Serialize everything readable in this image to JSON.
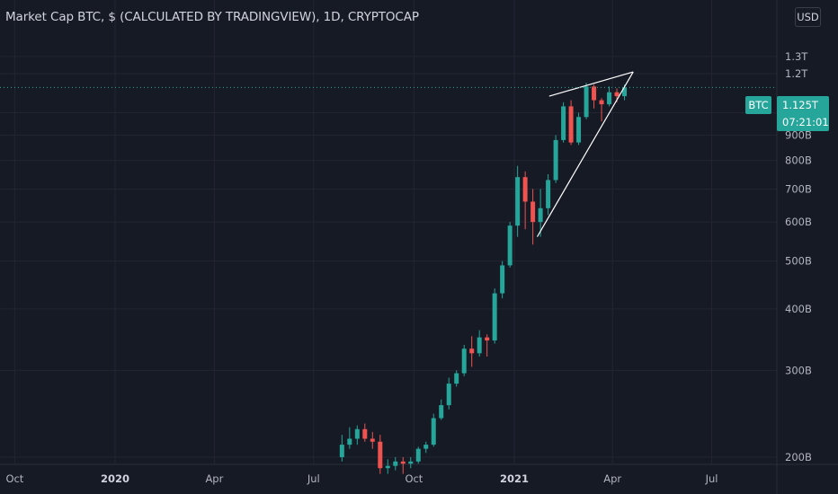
{
  "header": {
    "title": "Market Cap BTC, $ (CALCULATED BY TRADINGVIEW), 1D, CRYPTOCAP",
    "currency_button": "USD"
  },
  "price_tag": {
    "symbol": "BTC",
    "price": "1.125T",
    "countdown": "07:21:01"
  },
  "chart_data": {
    "type": "candlestick",
    "title": "Market Cap BTC, $ (CALCULATED BY TRADINGVIEW), 1D, CRYPTOCAP",
    "currency": "USD",
    "y_unit": "B USD",
    "y_ticks": [
      {
        "value": 200,
        "label": "200B"
      },
      {
        "value": 300,
        "label": "300B"
      },
      {
        "value": 400,
        "label": "400B"
      },
      {
        "value": 500,
        "label": "500B"
      },
      {
        "value": 600,
        "label": "600B"
      },
      {
        "value": 700,
        "label": "700B"
      },
      {
        "value": 800,
        "label": "800B"
      },
      {
        "value": 900,
        "label": "900B"
      },
      {
        "value": 1000,
        "label": "1T"
      },
      {
        "value": 1200,
        "label": "1.2T"
      },
      {
        "value": 1300,
        "label": "1.3T"
      }
    ],
    "x_ticks": [
      {
        "date": "2019-10-01",
        "label": "Oct",
        "bold": false
      },
      {
        "date": "2020-01-01",
        "label": "2020",
        "bold": true
      },
      {
        "date": "2020-04-01",
        "label": "Apr",
        "bold": false
      },
      {
        "date": "2020-07-01",
        "label": "Jul",
        "bold": false
      },
      {
        "date": "2020-10-01",
        "label": "Oct",
        "bold": false
      },
      {
        "date": "2021-01-01",
        "label": "2021",
        "bold": true
      },
      {
        "date": "2021-04-01",
        "label": "Apr",
        "bold": false
      },
      {
        "date": "2021-07-01",
        "label": "Jul",
        "bold": false
      }
    ],
    "last_value": 1125,
    "colors": {
      "up": "#26a69a",
      "down": "#ef5350",
      "background": "#161a25",
      "grid": "#232632",
      "trendline": "#ffffff"
    },
    "ohlc_weekly": [
      {
        "date": "2020-07-27",
        "o": 200,
        "h": 222,
        "l": 196,
        "c": 212
      },
      {
        "date": "2020-08-03",
        "o": 212,
        "h": 230,
        "l": 208,
        "c": 218
      },
      {
        "date": "2020-08-10",
        "o": 218,
        "h": 232,
        "l": 212,
        "c": 228
      },
      {
        "date": "2020-08-17",
        "o": 228,
        "h": 234,
        "l": 215,
        "c": 218
      },
      {
        "date": "2020-08-24",
        "o": 218,
        "h": 225,
        "l": 208,
        "c": 215
      },
      {
        "date": "2020-08-31",
        "o": 215,
        "h": 222,
        "l": 185,
        "c": 190
      },
      {
        "date": "2020-09-07",
        "o": 190,
        "h": 198,
        "l": 185,
        "c": 192
      },
      {
        "date": "2020-09-14",
        "o": 192,
        "h": 200,
        "l": 188,
        "c": 196
      },
      {
        "date": "2020-09-21",
        "o": 196,
        "h": 200,
        "l": 185,
        "c": 194
      },
      {
        "date": "2020-09-28",
        "o": 194,
        "h": 200,
        "l": 190,
        "c": 196
      },
      {
        "date": "2020-10-05",
        "o": 196,
        "h": 210,
        "l": 194,
        "c": 208
      },
      {
        "date": "2020-10-12",
        "o": 208,
        "h": 215,
        "l": 204,
        "c": 212
      },
      {
        "date": "2020-10-19",
        "o": 212,
        "h": 245,
        "l": 210,
        "c": 240
      },
      {
        "date": "2020-10-26",
        "o": 240,
        "h": 262,
        "l": 238,
        "c": 255
      },
      {
        "date": "2020-11-02",
        "o": 255,
        "h": 290,
        "l": 250,
        "c": 282
      },
      {
        "date": "2020-11-09",
        "o": 282,
        "h": 300,
        "l": 278,
        "c": 296
      },
      {
        "date": "2020-11-16",
        "o": 296,
        "h": 338,
        "l": 292,
        "c": 332
      },
      {
        "date": "2020-11-23",
        "o": 332,
        "h": 352,
        "l": 305,
        "c": 325
      },
      {
        "date": "2020-11-30",
        "o": 325,
        "h": 362,
        "l": 320,
        "c": 350
      },
      {
        "date": "2020-12-07",
        "o": 350,
        "h": 355,
        "l": 320,
        "c": 345
      },
      {
        "date": "2020-12-14",
        "o": 345,
        "h": 440,
        "l": 340,
        "c": 430
      },
      {
        "date": "2020-12-21",
        "o": 430,
        "h": 500,
        "l": 420,
        "c": 490
      },
      {
        "date": "2020-12-28",
        "o": 490,
        "h": 600,
        "l": 485,
        "c": 590
      },
      {
        "date": "2021-01-04",
        "o": 590,
        "h": 780,
        "l": 560,
        "c": 740
      },
      {
        "date": "2021-01-11",
        "o": 740,
        "h": 760,
        "l": 580,
        "c": 660
      },
      {
        "date": "2021-01-18",
        "o": 660,
        "h": 700,
        "l": 540,
        "c": 600
      },
      {
        "date": "2021-01-25",
        "o": 600,
        "h": 700,
        "l": 560,
        "c": 640
      },
      {
        "date": "2021-02-01",
        "o": 640,
        "h": 750,
        "l": 620,
        "c": 730
      },
      {
        "date": "2021-02-08",
        "o": 730,
        "h": 900,
        "l": 720,
        "c": 880
      },
      {
        "date": "2021-02-15",
        "o": 880,
        "h": 1050,
        "l": 870,
        "c": 1030
      },
      {
        "date": "2021-02-22",
        "o": 1030,
        "h": 1060,
        "l": 860,
        "c": 870
      },
      {
        "date": "2021-03-01",
        "o": 870,
        "h": 1000,
        "l": 860,
        "c": 980
      },
      {
        "date": "2021-03-08",
        "o": 980,
        "h": 1150,
        "l": 970,
        "c": 1130
      },
      {
        "date": "2021-03-15",
        "o": 1130,
        "h": 1140,
        "l": 1020,
        "c": 1060
      },
      {
        "date": "2021-03-22",
        "o": 1060,
        "h": 1070,
        "l": 960,
        "c": 1040
      },
      {
        "date": "2021-03-29",
        "o": 1040,
        "h": 1130,
        "l": 1030,
        "c": 1100
      },
      {
        "date": "2021-04-05",
        "o": 1100,
        "h": 1120,
        "l": 1050,
        "c": 1080
      },
      {
        "date": "2021-04-12",
        "o": 1080,
        "h": 1140,
        "l": 1060,
        "c": 1125
      }
    ],
    "annotations": {
      "rising_wedge_upper": [
        {
          "date": "2021-02-02",
          "value": 1080
        },
        {
          "date": "2021-04-20",
          "value": 1210
        }
      ],
      "rising_wedge_lower": [
        {
          "date": "2021-01-22",
          "value": 560
        },
        {
          "date": "2021-04-20",
          "value": 1210
        }
      ]
    }
  }
}
